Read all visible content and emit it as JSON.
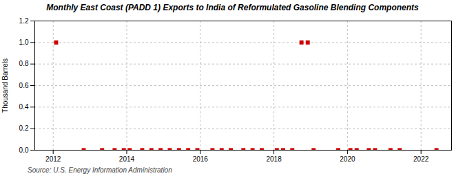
{
  "chart_data": {
    "type": "scatter",
    "title": "Monthly East Coast (PADD 1) Exports to India of Reformulated Gasoline Blending Components",
    "ylabel": "Thousand Barrels",
    "source": "Source: U.S. Energy Information Administration",
    "x": [
      2012.08,
      2012.83,
      2013.33,
      2013.67,
      2013.92,
      2014.08,
      2014.42,
      2014.67,
      2014.92,
      2015.17,
      2015.42,
      2015.67,
      2015.92,
      2016.33,
      2016.58,
      2016.83,
      2017.17,
      2017.42,
      2017.67,
      2018.08,
      2018.25,
      2018.5,
      2018.75,
      2018.92,
      2019.08,
      2019.75,
      2020.08,
      2020.25,
      2020.58,
      2020.75,
      2021.17,
      2021.42,
      2022.42
    ],
    "values": [
      1.0,
      0.0,
      0.0,
      0.0,
      0.0,
      0.0,
      0.0,
      0.0,
      0.0,
      0.0,
      0.0,
      0.0,
      0.0,
      0.0,
      0.0,
      0.0,
      0.0,
      0.0,
      0.0,
      0.0,
      0.0,
      0.0,
      1.0,
      1.0,
      0.0,
      0.0,
      0.0,
      0.0,
      0.0,
      0.0,
      0.0,
      0.0,
      0.0
    ],
    "color": "#cc0000",
    "marker": "square",
    "xlim": [
      2011.5,
      2022.83
    ],
    "ylim": [
      0.0,
      1.2
    ],
    "xticks": [
      2012,
      2014,
      2016,
      2018,
      2020,
      2022
    ],
    "yticks": [
      {
        "value": 0.0,
        "label": "0.0"
      },
      0.2,
      0.4,
      0.6,
      0.8,
      {
        "value": 1.0,
        "label": "1.0"
      },
      1.2
    ],
    "grid": true
  }
}
